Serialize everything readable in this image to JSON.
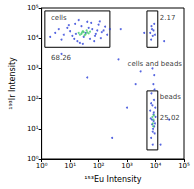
{
  "chart_data": {
    "type": "scatter",
    "x_label": "¹⁵³Eu Intensity",
    "y_label": "¹⁹³Ir Intensity",
    "log": true,
    "grid": false,
    "xlim": [
      1,
      100000
    ],
    "ylim": [
      1,
      100000
    ],
    "xticks": [
      {
        "value": 1,
        "label": "10⁰"
      },
      {
        "value": 10,
        "label": "10¹"
      },
      {
        "value": 100,
        "label": "10²"
      },
      {
        "value": 1000,
        "label": "10³"
      },
      {
        "value": 10000,
        "label": "10⁴"
      },
      {
        "value": 100000,
        "label": "10⁵"
      }
    ],
    "yticks": [
      {
        "value": 1,
        "label": "10⁰"
      },
      {
        "value": 10,
        "label": "10¹"
      },
      {
        "value": 100,
        "label": "10²"
      },
      {
        "value": 1000,
        "label": "10³"
      },
      {
        "value": 10000,
        "label": "10⁴"
      },
      {
        "value": 100000,
        "label": "10⁵"
      }
    ],
    "series": [
      {
        "color": "#2b3fd8",
        "marker": "circle",
        "values": [
          [
            3,
            15000
          ],
          [
            5,
            9000
          ],
          [
            8,
            22000
          ],
          [
            12,
            12000
          ],
          [
            15,
            30000
          ],
          [
            18,
            8000
          ],
          [
            25,
            25000
          ],
          [
            30,
            11000
          ],
          [
            40,
            35000
          ],
          [
            50,
            9500
          ],
          [
            60,
            20000
          ],
          [
            80,
            14000
          ],
          [
            100,
            28000
          ],
          [
            120,
            10000
          ],
          [
            150,
            18000
          ],
          [
            200,
            13000
          ],
          [
            4,
            20000
          ],
          [
            6,
            13000
          ],
          [
            10,
            17000
          ],
          [
            14,
            9500
          ],
          [
            20,
            40000
          ],
          [
            22,
            7000
          ],
          [
            35,
            15000
          ],
          [
            45,
            22000
          ],
          [
            70,
            8000
          ],
          [
            90,
            18000
          ],
          [
            110,
            36000
          ],
          [
            130,
            16000
          ],
          [
            170,
            24000
          ],
          [
            2,
            11000
          ],
          [
            9,
            27000
          ],
          [
            16,
            14000
          ],
          [
            28,
            6500
          ],
          [
            55,
            32000
          ],
          [
            75,
            12000
          ],
          [
            250,
            20000
          ],
          [
            6500,
            15000
          ],
          [
            7500,
            20000
          ],
          [
            8000,
            12000
          ],
          [
            9000,
            30000
          ],
          [
            7000,
            9000
          ],
          [
            8500,
            18000
          ],
          [
            9500,
            13000
          ],
          [
            7200,
            25000
          ],
          [
            7000,
            5
          ],
          [
            8000,
            8
          ],
          [
            9000,
            12
          ],
          [
            7500,
            20
          ],
          [
            8500,
            30
          ],
          [
            9500,
            15
          ],
          [
            6500,
            40
          ],
          [
            10000,
            25
          ],
          [
            7800,
            60
          ],
          [
            8800,
            90
          ],
          [
            7200,
            150
          ],
          [
            9200,
            200
          ],
          [
            8200,
            10
          ],
          [
            8600,
            18
          ],
          [
            7600,
            14
          ],
          [
            9800,
            50
          ],
          [
            7000,
            70
          ],
          [
            8400,
            300
          ],
          [
            9000,
            600
          ],
          [
            7800,
            1000
          ],
          [
            8000,
            3
          ],
          [
            9300,
            7
          ],
          [
            6800,
            22
          ],
          [
            8700,
            35
          ],
          [
            300,
            5
          ],
          [
            1000,
            50
          ],
          [
            3000,
            800
          ],
          [
            500,
            2000
          ],
          [
            2000,
            300
          ],
          [
            30000,
            20
          ],
          [
            20000,
            8000
          ],
          [
            40,
            500
          ],
          [
            5,
            3000
          ],
          [
            15000,
            3
          ],
          [
            600,
            20000
          ],
          [
            4000,
            15000
          ]
        ]
      },
      {
        "color": "#3cc86a",
        "marker": "circle",
        "values": [
          [
            20,
            15000
          ],
          [
            25,
            14000
          ],
          [
            30,
            16000
          ],
          [
            35,
            13500
          ],
          [
            40,
            15500
          ],
          [
            28,
            17000
          ],
          [
            45,
            14500
          ],
          [
            32,
            12500
          ],
          [
            38,
            18000
          ],
          [
            22,
            13000
          ],
          [
            50,
            16500
          ],
          [
            26,
            15500
          ],
          [
            8000,
            15
          ],
          [
            8500,
            20
          ],
          [
            7800,
            25
          ],
          [
            8300,
            12
          ],
          [
            8800,
            28
          ]
        ]
      }
    ],
    "gates": [
      {
        "label": "cells",
        "value": 68.26,
        "x": [
          1.3,
          250
        ],
        "y": [
          5000,
          80000
        ]
      },
      {
        "label": "cells and beads",
        "value": 2.17,
        "x": [
          5000,
          12000
        ],
        "y": [
          5000,
          80000
        ]
      },
      {
        "label": "beads",
        "value": 25.02,
        "x": [
          5000,
          12000
        ],
        "y": [
          2,
          180
        ]
      }
    ]
  }
}
